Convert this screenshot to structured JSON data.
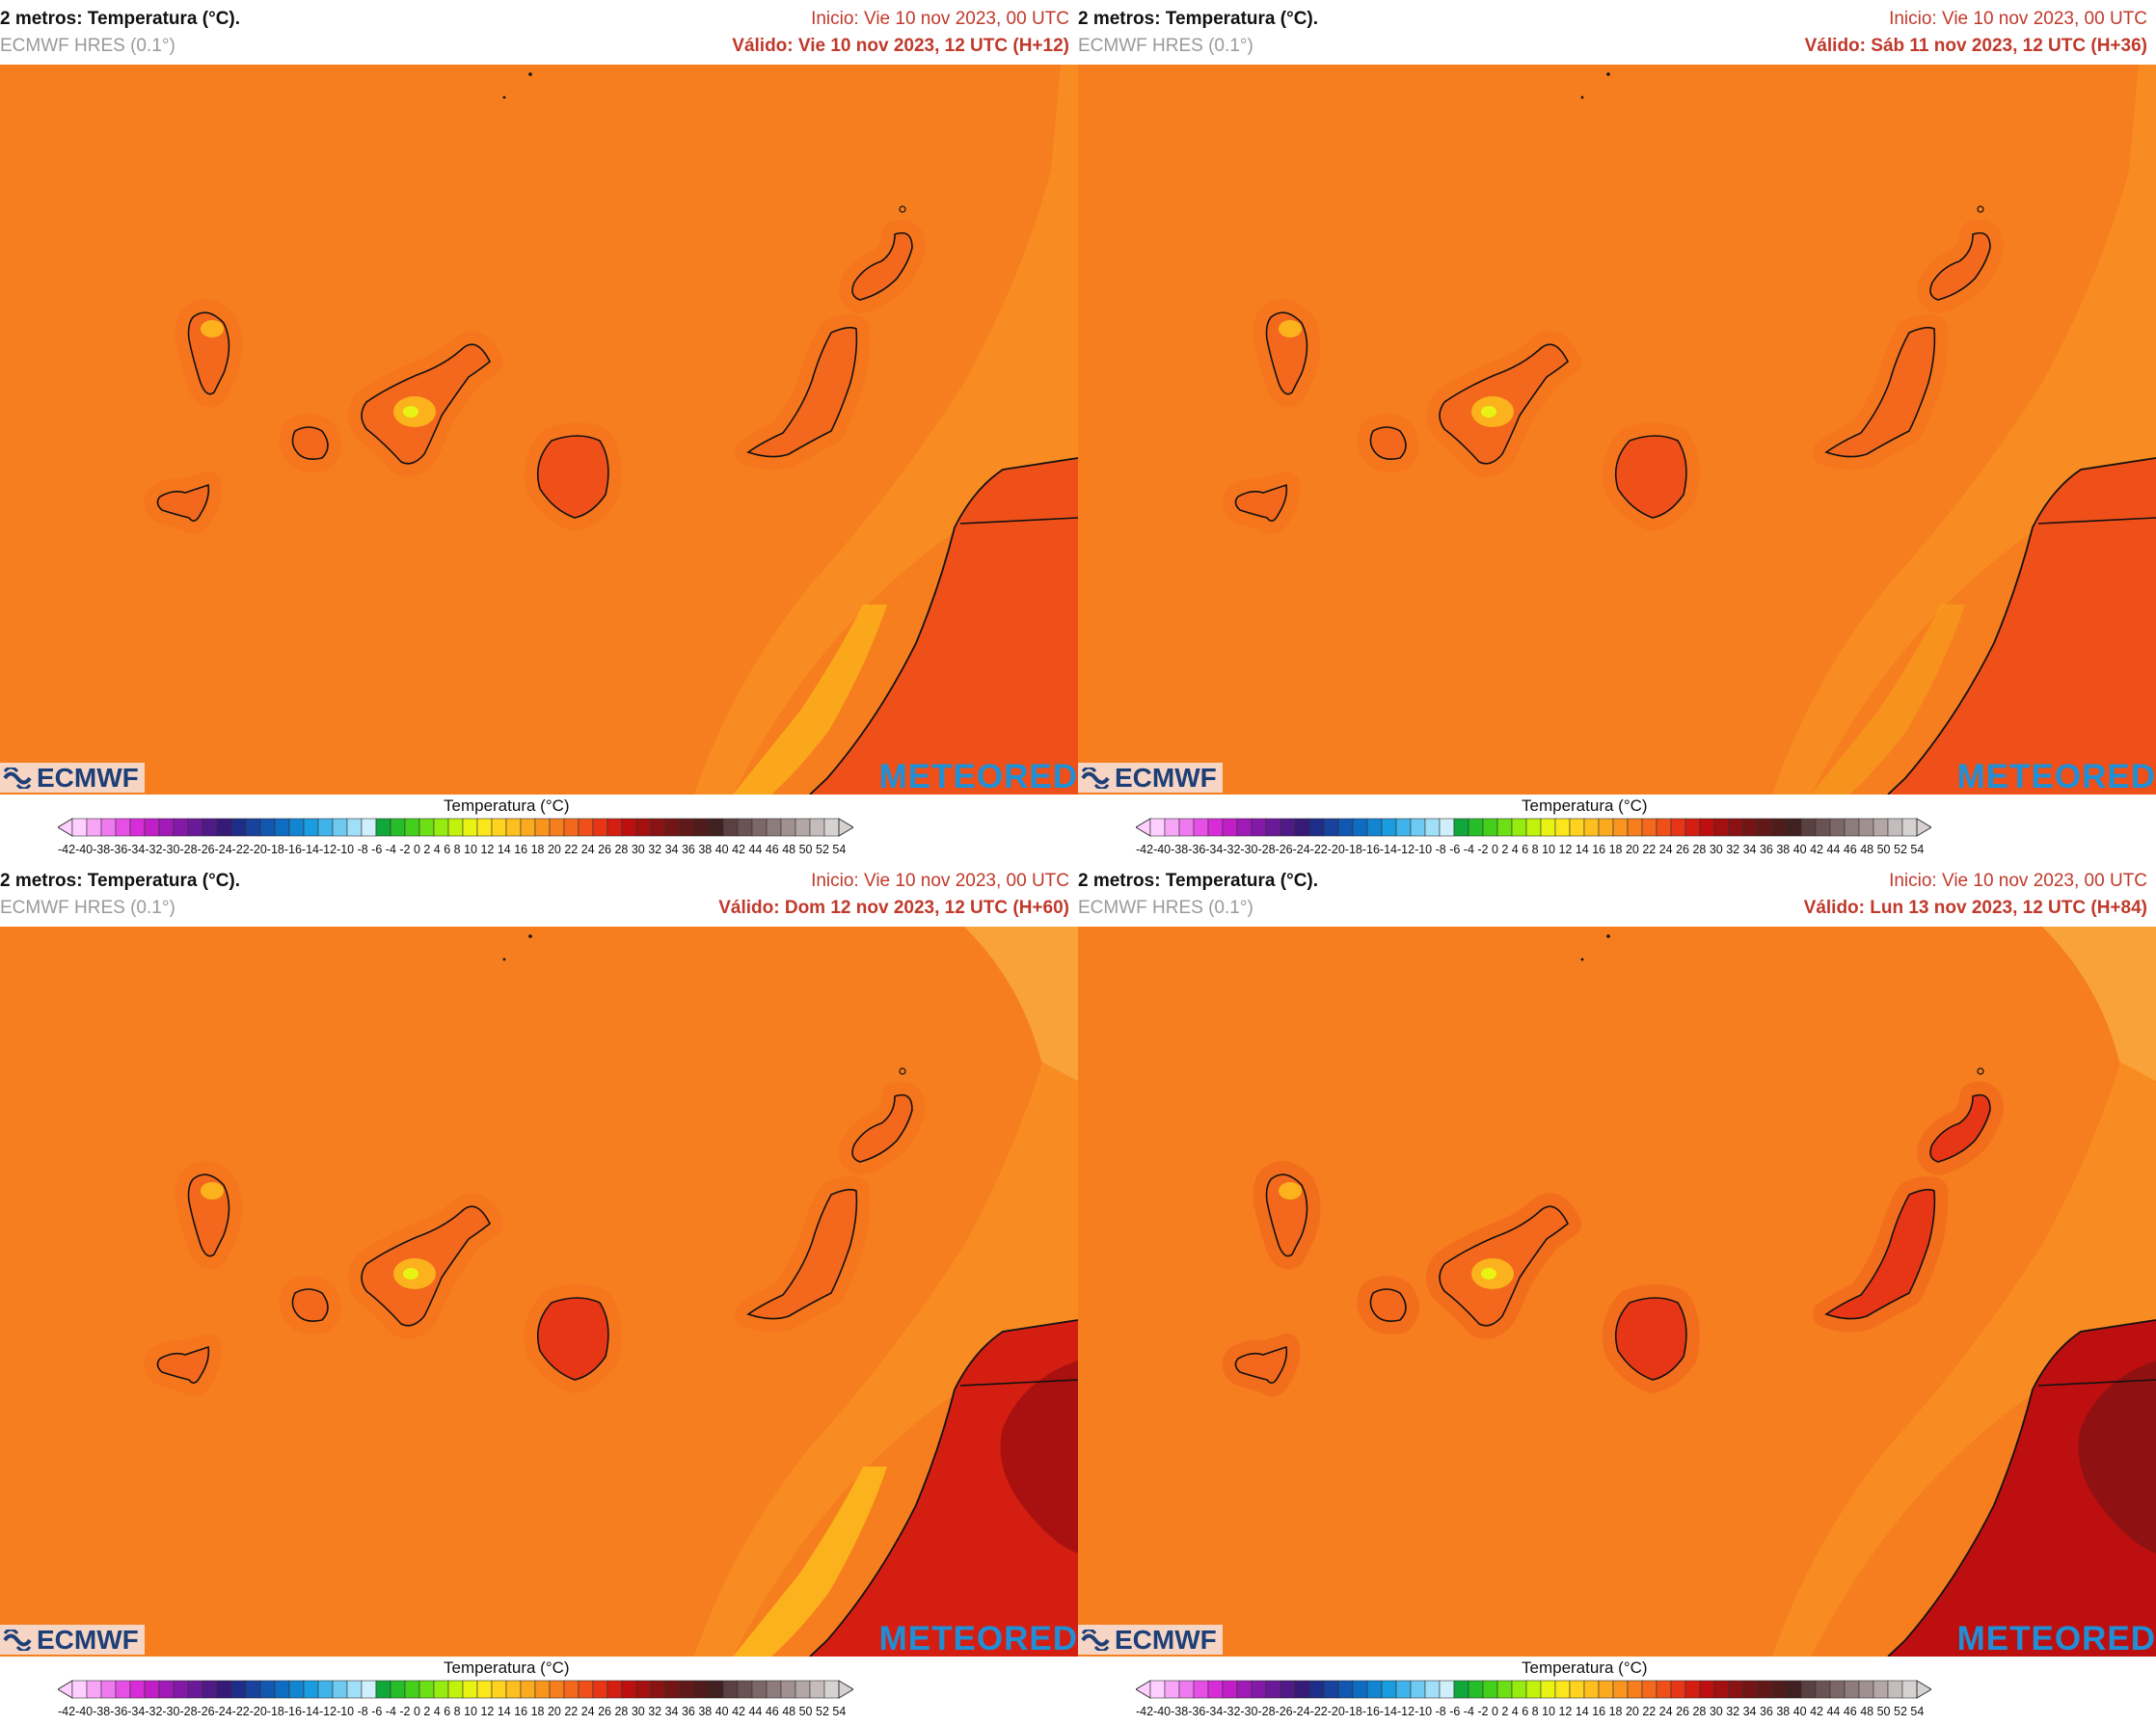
{
  "panels": [
    {
      "title": "2 metros: Temperatura (°C).",
      "model": "ECMWF HRES (0.1°)",
      "init": "Inicio: Vie 10 nov 2023, 00 UTC",
      "valid": "Válido: Vie 10 nov 2023, 12 UTC (H+12)",
      "warm_level": 1
    },
    {
      "title": "2 metros: Temperatura (°C).",
      "model": "ECMWF HRES (0.1°)",
      "init": "Inicio: Vie 10 nov 2023, 00 UTC",
      "valid": "Válido: Sáb 11 nov 2023, 12 UTC (H+36)",
      "warm_level": 2
    },
    {
      "title": "2 metros: Temperatura (°C).",
      "model": "ECMWF HRES (0.1°)",
      "init": "Inicio: Vie 10 nov 2023, 00 UTC",
      "valid": "Válido: Dom 12 nov 2023, 12 UTC (H+60)",
      "warm_level": 3
    },
    {
      "title": "2 metros: Temperatura (°C).",
      "model": "ECMWF HRES (0.1°)",
      "init": "Inicio: Vie 10 nov 2023, 00 UTC",
      "valid": "Válido: Lun 13 nov 2023, 12 UTC (H+84)",
      "warm_level": 4
    }
  ],
  "logos": {
    "left": "ECMWF",
    "right": "METEORED"
  },
  "legend": {
    "title": "Temperatura (°C)",
    "labels": "-42-40-38-36-34-32-30-28-26-24-22-20-18-16-14-12-10 -8 -6 -4 -2  0  2  4  6  8 10 12 14 16 18 20 22 24 26 28 30 32 34 36 38 40 42 44 46 48 50 52 54",
    "colors": [
      "#ffcfff",
      "#f7a5f7",
      "#ef79ef",
      "#e64fe6",
      "#d92cd9",
      "#c21ec8",
      "#a01ab8",
      "#8419a8",
      "#6a1a98",
      "#4f1a88",
      "#351a78",
      "#1f2d8a",
      "#17429d",
      "#1257b0",
      "#0f6cc3",
      "#1284d2",
      "#1a9ce0",
      "#3fb3ea",
      "#6fcaf2",
      "#9fdff7",
      "#cfeffb",
      "#10a83a",
      "#26bd2a",
      "#45cf1d",
      "#6ce014",
      "#95ec0e",
      "#c0f20c",
      "#e8f313",
      "#fbe51b",
      "#fed21e",
      "#fdbf1f",
      "#fbaa20",
      "#f9941f",
      "#f67e1e",
      "#f3681c",
      "#ef5019",
      "#e63616",
      "#d41e12",
      "#bd0f0f",
      "#a3100f",
      "#8a1212",
      "#741515",
      "#611818",
      "#4f1b1b",
      "#402020",
      "#5a4040",
      "#6b5353",
      "#7c6767",
      "#8e7b7b",
      "#a09090",
      "#b2a6a6",
      "#c4bcbc",
      "#d6d2d2"
    ],
    "ocean_color": "#f67e1e",
    "land_colors": [
      "#f3681c",
      "#ef5019",
      "#e63616",
      "#bd0f0f"
    ]
  }
}
